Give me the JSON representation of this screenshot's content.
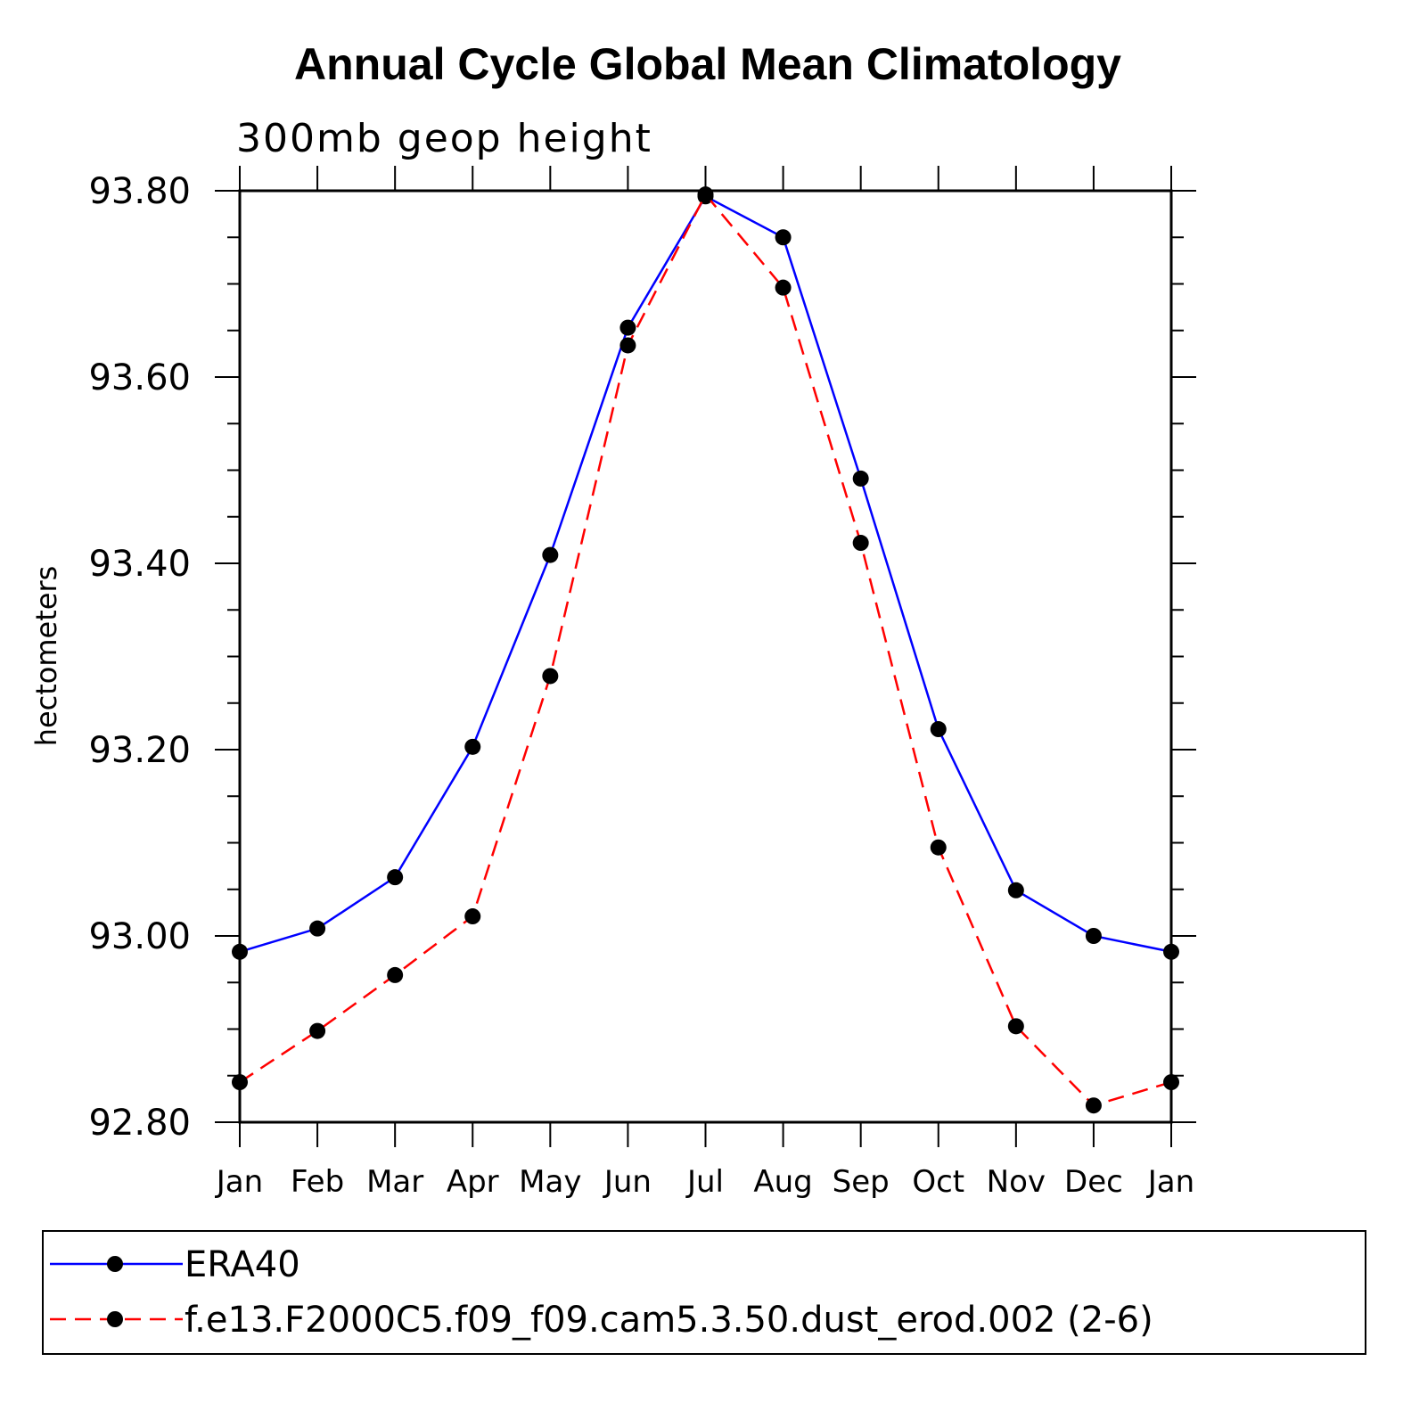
{
  "chart_data": {
    "type": "line",
    "title": "Annual Cycle Global Mean Climatology",
    "subtitle": "300mb geop height",
    "xlabel": "",
    "ylabel": "hectometers",
    "categories": [
      "Jan",
      "Feb",
      "Mar",
      "Apr",
      "May",
      "Jun",
      "Jul",
      "Aug",
      "Sep",
      "Oct",
      "Nov",
      "Dec",
      "Jan"
    ],
    "ylim": [
      92.8,
      93.8
    ],
    "yticks": [
      "92.80",
      "93.00",
      "93.20",
      "93.40",
      "93.60",
      "93.80"
    ],
    "grid": false,
    "legend_position": "bottom",
    "series": [
      {
        "name": "ERA40",
        "color": "#0000ff",
        "dash": "solid",
        "marker": "filled-circle",
        "values": [
          92.983,
          93.008,
          93.063,
          93.203,
          93.409,
          93.653,
          93.794,
          93.75,
          93.491,
          93.222,
          93.049,
          93.0,
          92.983
        ]
      },
      {
        "name": "f.e13.F2000C5.f09_f09.cam5.3.50.dust_erod.002 (2-6)",
        "color": "#ff0000",
        "dash": "dashed",
        "marker": "filled-circle",
        "values": [
          92.843,
          92.898,
          92.958,
          93.021,
          93.279,
          93.634,
          93.796,
          93.696,
          93.422,
          93.095,
          92.903,
          92.818,
          92.843
        ]
      }
    ]
  }
}
